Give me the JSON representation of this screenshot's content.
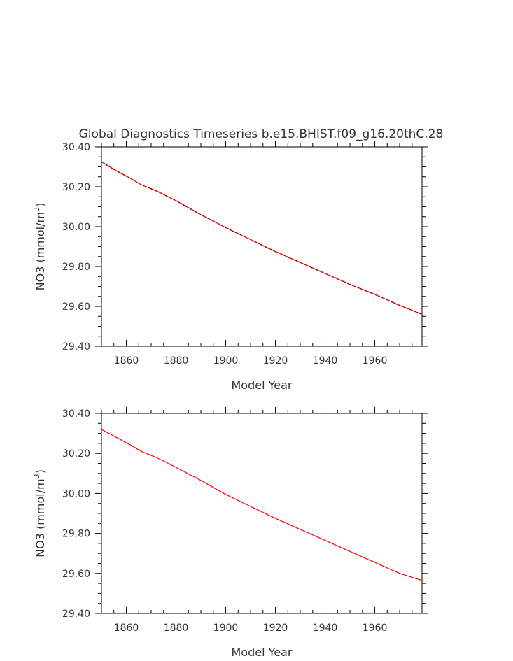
{
  "chart_data": [
    {
      "type": "line",
      "title": "Global Diagnostics Timeseries b.e15.BHIST.f09_g16.20thC.28",
      "xlabel": "Model Year",
      "ylabel_main": "NO3 (mmol/m",
      "ylabel_exp": "3",
      "ylabel_close": ")",
      "xlim": [
        1850,
        1979
      ],
      "ylim": [
        29.4,
        30.4
      ],
      "xticks": [
        1860,
        1880,
        1900,
        1920,
        1940,
        1960
      ],
      "xtick_labels": [
        "1860",
        "1880",
        "1900",
        "1920",
        "1940",
        "1960"
      ],
      "yticks": [
        29.4,
        29.6,
        29.8,
        30.0,
        30.2,
        30.4
      ],
      "ytick_labels": [
        "29.40",
        "29.60",
        "29.80",
        "30.00",
        "30.20",
        "30.40"
      ],
      "grid": false,
      "series": [
        {
          "color": "#8b0000",
          "style": "dashed-over-red",
          "x": [
            1850,
            1856,
            1862,
            1866,
            1872,
            1880,
            1890,
            1900,
            1910,
            1920,
            1930,
            1940,
            1950,
            1960,
            1970,
            1979
          ],
          "values": [
            30.325,
            30.28,
            30.24,
            30.21,
            30.18,
            30.13,
            30.06,
            29.995,
            29.935,
            29.875,
            29.82,
            29.765,
            29.71,
            29.66,
            29.605,
            29.56
          ]
        }
      ]
    },
    {
      "type": "line",
      "title": "",
      "xlabel": "Model Year",
      "ylabel_main": "NO3 (mmol/m",
      "ylabel_exp": "3",
      "ylabel_close": ")",
      "xlim": [
        1850,
        1979
      ],
      "ylim": [
        29.4,
        30.4
      ],
      "xticks": [
        1860,
        1880,
        1900,
        1920,
        1940,
        1960
      ],
      "xtick_labels": [
        "1860",
        "1880",
        "1900",
        "1920",
        "1940",
        "1960"
      ],
      "yticks": [
        29.4,
        29.6,
        29.8,
        30.0,
        30.2,
        30.4
      ],
      "ytick_labels": [
        "29.40",
        "29.60",
        "29.80",
        "30.00",
        "30.20",
        "30.40"
      ],
      "grid": false,
      "series": [
        {
          "color": "#ff0000",
          "style": "solid",
          "x": [
            1850,
            1856,
            1862,
            1866,
            1872,
            1880,
            1890,
            1900,
            1910,
            1920,
            1930,
            1940,
            1950,
            1960,
            1970,
            1979
          ],
          "values": [
            30.32,
            30.28,
            30.24,
            30.21,
            30.18,
            30.13,
            30.065,
            29.995,
            29.935,
            29.875,
            29.82,
            29.765,
            29.71,
            29.655,
            29.6,
            29.565
          ]
        }
      ]
    }
  ]
}
